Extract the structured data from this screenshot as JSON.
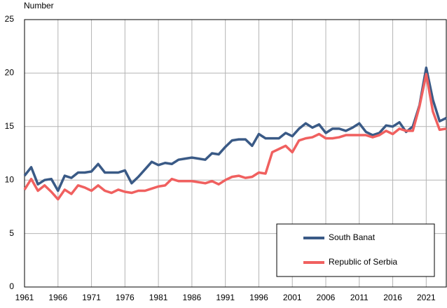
{
  "chart_data": {
    "type": "line",
    "y_label": "Number",
    "x": [
      1961,
      1962,
      1963,
      1964,
      1965,
      1966,
      1967,
      1968,
      1969,
      1970,
      1971,
      1972,
      1973,
      1974,
      1975,
      1976,
      1977,
      1978,
      1979,
      1980,
      1981,
      1982,
      1983,
      1984,
      1985,
      1986,
      1987,
      1988,
      1989,
      1990,
      1991,
      1992,
      1993,
      1994,
      1995,
      1996,
      1997,
      1998,
      1999,
      2000,
      2001,
      2002,
      2003,
      2004,
      2005,
      2006,
      2007,
      2008,
      2009,
      2010,
      2011,
      2012,
      2013,
      2014,
      2015,
      2016,
      2017,
      2018,
      2019,
      2020,
      2021,
      2022,
      2023,
      2024
    ],
    "series": [
      {
        "name": "South Banat",
        "color": "#3a5a86",
        "values": [
          10.4,
          11.2,
          9.6,
          10.0,
          10.1,
          9.0,
          10.4,
          10.2,
          10.7,
          10.7,
          10.8,
          11.5,
          10.7,
          10.7,
          10.7,
          10.9,
          9.7,
          10.3,
          11.0,
          11.7,
          11.4,
          11.6,
          11.5,
          11.9,
          12.0,
          12.1,
          12.0,
          11.9,
          12.5,
          12.4,
          13.1,
          13.7,
          13.8,
          13.8,
          13.2,
          14.3,
          13.9,
          13.9,
          13.9,
          14.4,
          14.1,
          14.8,
          15.3,
          14.9,
          15.2,
          14.4,
          14.8,
          14.8,
          14.6,
          14.9,
          15.3,
          14.5,
          14.2,
          14.4,
          15.1,
          15.0,
          15.4,
          14.5,
          15.0,
          17.0,
          20.5,
          17.5,
          15.5,
          15.8
        ]
      },
      {
        "name": "Republic of Serbia",
        "color": "#f0605f",
        "values": [
          9.1,
          10.1,
          9.0,
          9.5,
          8.9,
          8.2,
          9.1,
          8.7,
          9.5,
          9.3,
          9.0,
          9.5,
          9.0,
          8.8,
          9.1,
          8.9,
          8.8,
          9.0,
          9.0,
          9.2,
          9.4,
          9.5,
          10.1,
          9.9,
          9.9,
          9.9,
          9.8,
          9.7,
          9.9,
          9.6,
          10.0,
          10.3,
          10.4,
          10.2,
          10.3,
          10.7,
          10.6,
          12.6,
          12.9,
          13.2,
          12.6,
          13.7,
          13.9,
          14.0,
          14.3,
          13.9,
          13.9,
          14.0,
          14.2,
          14.2,
          14.2,
          14.2,
          14.0,
          14.2,
          14.6,
          14.3,
          14.8,
          14.6,
          14.6,
          16.9,
          19.9,
          16.4,
          14.7,
          14.8
        ]
      }
    ],
    "xlim": [
      1961,
      2024
    ],
    "xticks": [
      1961,
      1966,
      1971,
      1976,
      1981,
      1986,
      1991,
      1996,
      2001,
      2006,
      2011,
      2016,
      2021
    ],
    "ylim": [
      0,
      25
    ],
    "yticks": [
      0,
      5,
      10,
      15,
      20,
      25
    ],
    "grid": true,
    "legend": "lower right"
  }
}
